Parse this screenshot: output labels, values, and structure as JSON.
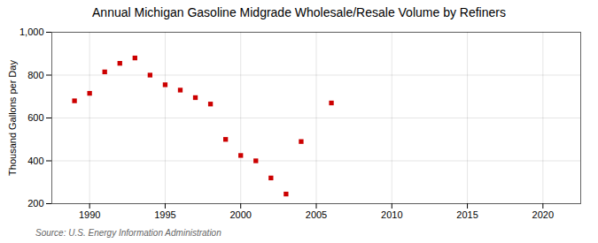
{
  "chart_data": {
    "type": "scatter",
    "title": "Annual Michigan Gasoline Midgrade Wholesale/Resale Volume by Refiners",
    "ylabel": "Thousand Gallons per Day",
    "source": "Source: U.S. Energy Information Administration",
    "x": [
      1989,
      1990,
      1991,
      1992,
      1993,
      1994,
      1995,
      1996,
      1997,
      1998,
      1999,
      2000,
      2001,
      2002,
      2003,
      2004,
      2006
    ],
    "values": [
      680,
      715,
      815,
      855,
      880,
      800,
      755,
      730,
      695,
      665,
      500,
      425,
      400,
      320,
      245,
      490,
      670
    ],
    "color": "#cc0000",
    "marker": "square",
    "xlim": [
      1987.5,
      2022.5
    ],
    "xticks": [
      1990,
      1995,
      2000,
      2005,
      2010,
      2015,
      2020
    ],
    "ylim": [
      200,
      1000
    ],
    "yticks": [
      200,
      400,
      600,
      800,
      {
        "value": 1000,
        "label": "1,000"
      }
    ],
    "grid": true
  }
}
